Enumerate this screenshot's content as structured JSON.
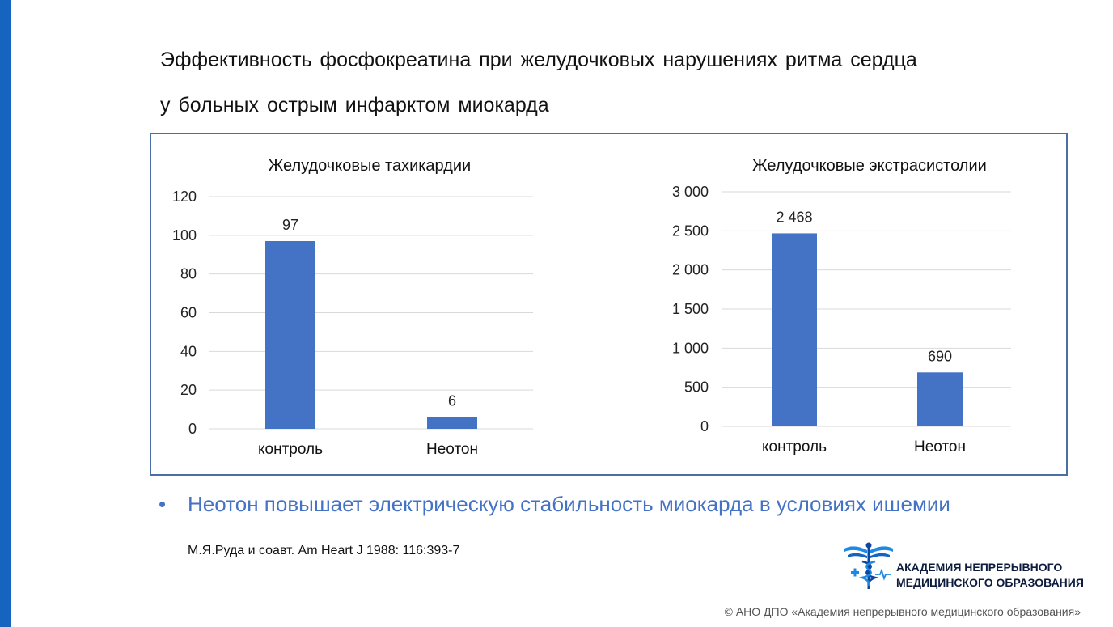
{
  "title": {
    "line1": "Эффективность  фосфокреатина  при желудочковых  нарушениях  ритма  сердца",
    "line2": "у больных  острым  инфарктом  миокарда"
  },
  "chart_data": [
    {
      "type": "bar",
      "title": "Желудочковые тахикардии",
      "categories": [
        "контроль",
        "Неотон"
      ],
      "values": [
        97,
        6
      ],
      "value_labels": [
        "97",
        "6"
      ],
      "ylim": [
        0,
        120
      ],
      "yticks": [
        0,
        20,
        40,
        60,
        80,
        100,
        120
      ],
      "ytick_labels": [
        "0",
        "20",
        "40",
        "60",
        "80",
        "100",
        "120"
      ],
      "grid": true,
      "legend": "none",
      "bar_color": "#4472c4"
    },
    {
      "type": "bar",
      "title": "Желудочковые экстрасистолии",
      "categories": [
        "контроль",
        "Неотон"
      ],
      "values": [
        2468,
        690
      ],
      "value_labels": [
        "2 468",
        "690"
      ],
      "ylim": [
        0,
        3000
      ],
      "yticks": [
        0,
        500,
        1000,
        1500,
        2000,
        2500,
        3000
      ],
      "ytick_labels": [
        "0",
        "500",
        "1 000",
        "1 500",
        "2 000",
        "2 500",
        "3 000"
      ],
      "grid": true,
      "legend": "none",
      "bar_color": "#4472c4"
    }
  ],
  "bullet": {
    "symbol": "•",
    "text": "Неотон повышает электрическую стабильность  миокарда в условиях ишемии"
  },
  "citation": "М.Я.Руда и соавт. Am Heart J 1988: 116:393-7",
  "logo": {
    "icon": "caduceus-icon",
    "line1": "АКАДЕМИЯ НЕПРЕРЫВНОГО",
    "line2": "МЕДИЦИНСКОГО ОБРАЗОВАНИЯ"
  },
  "footer": "© АНО ДПО «Академия непрерывного медицинского образования»",
  "colors": {
    "accent": "#1565c0",
    "bar": "#4472c4",
    "frame": "#4a6fa5",
    "note": "#4472c4"
  }
}
